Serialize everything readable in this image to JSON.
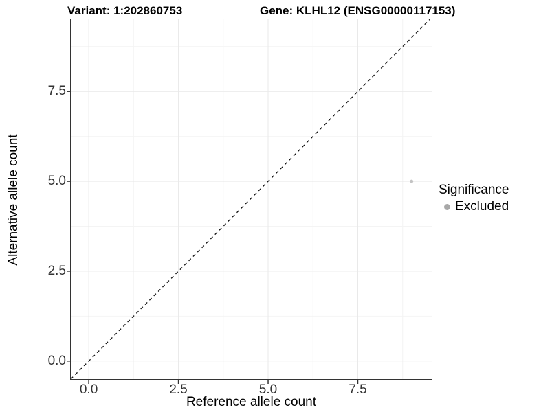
{
  "chart_data": {
    "type": "scatter",
    "title_left": "Variant: 1:202860753",
    "title_right": "Gene: KLHL12 (ENSG00000117153)",
    "xlabel": "Reference allele count",
    "ylabel": "Alternative allele count",
    "xlim": [
      -0.5,
      9.56
    ],
    "ylim": [
      -0.52,
      9.51
    ],
    "xticks": [
      0.0,
      2.5,
      5.0,
      7.5
    ],
    "yticks": [
      0.0,
      2.5,
      5.0,
      7.5
    ],
    "xtick_labels": [
      "0.0",
      "2.5",
      "5.0",
      "7.5"
    ],
    "ytick_labels": [
      "0.0",
      "2.5",
      "5.0",
      "7.5"
    ],
    "minor_ticks": [
      1.25,
      3.75,
      6.25,
      8.75
    ],
    "grid": true,
    "points": [
      {
        "x": 9,
        "y": 5,
        "series": "Excluded",
        "color": "#c3c3c3",
        "radius": 2.4
      }
    ],
    "abline": {
      "slope": 1,
      "intercept": 0,
      "style": "dashed",
      "color": "#111111"
    },
    "legend": {
      "title": "Significance",
      "position": "right",
      "items": [
        {
          "label": "Excluded",
          "color": "#a8a8a8"
        }
      ]
    },
    "colors": {
      "axis_line": "#333333",
      "tick_mark": "#333333",
      "major_grid": "#e9e9e9",
      "minor_grid": "#f4f4f4",
      "panel_background": "#ffffff"
    }
  }
}
